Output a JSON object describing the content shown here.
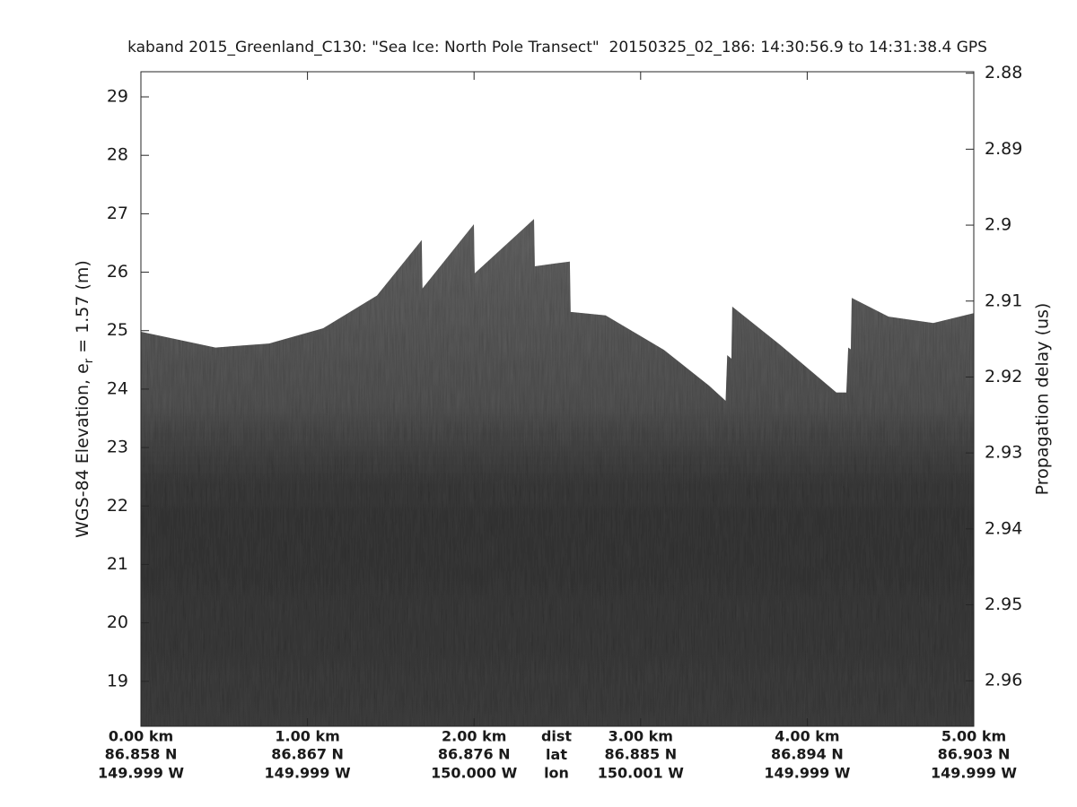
{
  "chart_data": {
    "type": "echogram",
    "title": "kaband 2015_Greenland_C130: \"Sea Ice: North Pole Transect\"  20150325_02_186: 14:30:56.9 to 14:31:38.4 GPS",
    "ylabel": [
      "WGS-84 Elevation, e",
      "r",
      " = 1.57 (m)"
    ],
    "y2label": "Propagation delay (us)",
    "xlim": [
      0,
      5
    ],
    "xticks": [
      {
        "value": 0,
        "label": "0.00 km"
      },
      {
        "value": 1,
        "label": "1.00 km"
      },
      {
        "value": 2,
        "label": "2.00 km"
      },
      {
        "value": 3,
        "label": "3.00 km"
      },
      {
        "value": 4,
        "label": "4.00 km"
      },
      {
        "value": 5,
        "label": "5.00 km"
      }
    ],
    "lat_labels": [
      "86.858 N",
      "86.867 N",
      "86.876 N",
      "86.885 N",
      "86.894 N",
      "86.903 N"
    ],
    "lon_labels": [
      "149.999 W",
      "149.999 W",
      "150.000 W",
      "150.001 W",
      "149.999 W",
      "149.999 W"
    ],
    "row_labels": [
      "dist",
      "lat",
      "lon"
    ],
    "ylim": [
      18.23,
      29.43
    ],
    "yticks": [
      19,
      20,
      21,
      22,
      23,
      24,
      25,
      26,
      27,
      28,
      29
    ],
    "y2lim": [
      2.966,
      2.8798
    ],
    "y2ticks": [
      2.88,
      2.89,
      2.9,
      2.91,
      2.92,
      2.93,
      2.94,
      2.95,
      2.96
    ],
    "x": [
      0,
      0.447,
      0.77,
      1.094,
      1.417,
      1.686,
      1.69,
      1.999,
      2.004,
      2.36,
      2.365,
      2.49,
      2.575,
      2.58,
      2.79,
      3.14,
      3.41,
      3.51,
      3.52,
      3.545,
      3.55,
      3.84,
      4.175,
      4.235,
      4.246,
      4.262,
      4.267,
      4.488,
      4.757,
      5.0
    ],
    "values": [
      24.98,
      24.71,
      24.78,
      25.04,
      25.6,
      26.55,
      25.72,
      26.82,
      25.98,
      26.91,
      26.1,
      26.15,
      26.18,
      25.32,
      25.26,
      24.67,
      24.06,
      23.8,
      24.58,
      24.52,
      25.41,
      24.75,
      23.94,
      23.94,
      24.71,
      24.68,
      25.56,
      25.24,
      25.13,
      25.3
    ],
    "color": "#5e5e5e"
  }
}
